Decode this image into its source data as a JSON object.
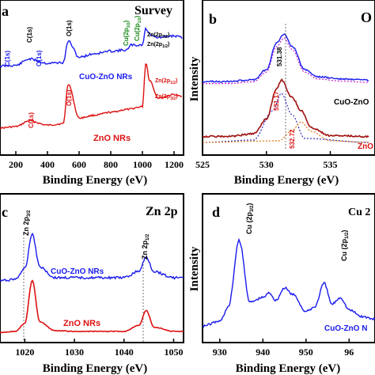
{
  "panels": [
    {
      "letter": "a",
      "title": "Survey",
      "xlabel": "Binding Energy (eV)",
      "xticks": [
        "200",
        "400",
        "600",
        "800",
        "1000",
        "1200"
      ],
      "labels": {
        "cuo_cu2p32": "Cu(2p",
        "cuo_cu2p32_sub": "3/2",
        "cuo_cu2p32_end": ")",
        "cuo_cu2p12": "Cu(2p",
        "cuo_cu2p12_sub": "1/2",
        "cuo_cu2p12_end": ")",
        "cuo_zn2p32": "Zn(2p",
        "cuo_zn2p32_sub": "3/2",
        "cuo_zn2p32_end": ")",
        "cuo_zn2p12": "Zn(2p",
        "cuo_zn2p12_sub": "1/2",
        "cuo_zn2p12_end": ")",
        "cuo_c1s": "C(1s)",
        "cuo_o1s": "O(1s)",
        "zno_c1s": "C(1s)",
        "zno_o1s": "O(1s)",
        "zno_zn2p12": "Zn(2p",
        "zno_zn2p12_sub": "1/2",
        "zno_zn2p12_end": ")",
        "zno_zn2p32": "Zn(2p",
        "zno_zn2p32_sub": "3/2",
        "zno_zn2p32_end": ")",
        "cuo_series": "CuO-ZnO NRs",
        "zno_series": "ZnO NRs"
      }
    },
    {
      "letter": "b",
      "title": "O",
      "xlabel": "Binding Energy (eV)",
      "ylabel": "Intensity",
      "xticks": [
        "525",
        "530",
        "535"
      ],
      "peak_top": "531.38",
      "peak_bottom_1": "531.17",
      "peak_bottom_2": "532.72",
      "cuo_series": "CuO-ZnO",
      "zno_series": "ZnO"
    },
    {
      "letter": "c",
      "title": "Zn 2p",
      "xlabel": "Binding Energy (eV)",
      "xticks": [
        "1020",
        "1030",
        "1040",
        "1050"
      ],
      "peak1": "Zn 2p",
      "peak1_sub": "3/2",
      "peak2": "Zn 2p",
      "peak2_sub": "1/2",
      "cuo_series": "CuO-ZnO NRs",
      "zno_series": "ZnO NRs"
    },
    {
      "letter": "d",
      "title": "Cu 2",
      "xlabel": "Binding Energy (eV)",
      "ylabel": "Intensity",
      "xticks": [
        "930",
        "940",
        "950",
        "96"
      ],
      "peak1": "Cu (2p",
      "peak1_sub": "3/2",
      "peak1_end": ")",
      "peak2": "Cu (2p",
      "peak2_sub": "1/2",
      "peak2_end": ")",
      "series": "CuO-ZnO N"
    }
  ],
  "colors": {
    "blue": "#1a1aee",
    "red": "#dd1111",
    "green": "#1a8a1a",
    "dkred": "#a01010",
    "magenta": "#cc22cc",
    "orange": "#e07a10",
    "purple": "#3030c0"
  },
  "chart_data": [
    {
      "type": "line",
      "panel": "a",
      "xlabel": "Binding Energy (eV)",
      "xlim": [
        100,
        1260
      ],
      "series": [
        {
          "name": "CuO-ZnO NRs",
          "x": [
            100,
            200,
            285,
            400,
            500,
            531,
            600,
            700,
            800,
            900,
            933,
            953,
            1000,
            1022,
            1045,
            1100,
            1200,
            1250
          ],
          "y": [
            70,
            72,
            90,
            78,
            80,
            140,
            95,
            105,
            112,
            115,
            130,
            128,
            130,
            175,
            160,
            150,
            155,
            150
          ]
        },
        {
          "name": "ZnO NRs",
          "x": [
            100,
            200,
            285,
            400,
            500,
            531,
            600,
            700,
            800,
            900,
            1000,
            1022,
            1045,
            1100,
            1200,
            1250
          ],
          "y": [
            18,
            20,
            28,
            22,
            24,
            80,
            32,
            36,
            40,
            44,
            48,
            110,
            85,
            60,
            65,
            62
          ]
        }
      ]
    },
    {
      "type": "line",
      "panel": "b",
      "xlabel": "Binding Energy (eV)",
      "ylabel": "Intensity",
      "xlim": [
        525,
        538
      ],
      "series": [
        {
          "name": "CuO-ZnO",
          "x": [
            525,
            527,
            529,
            530,
            530.8,
            531.38,
            532,
            533,
            534,
            536,
            538
          ],
          "y": [
            20,
            20,
            23,
            40,
            85,
            100,
            80,
            40,
            28,
            24,
            22
          ]
        },
        {
          "name": "ZnO",
          "x": [
            525,
            527,
            529,
            530,
            530.8,
            531.17,
            532,
            532.72,
            533.5,
            535,
            538
          ],
          "y": [
            5,
            5,
            8,
            25,
            60,
            70,
            50,
            35,
            15,
            6,
            5
          ]
        }
      ]
    },
    {
      "type": "line",
      "panel": "c",
      "xlabel": "Binding Energy (eV)",
      "xlim": [
        1015,
        1052
      ],
      "series": [
        {
          "name": "CuO-ZnO NRs",
          "x": [
            1015,
            1018,
            1020,
            1021.5,
            1023,
            1026,
            1030,
            1035,
            1040,
            1043,
            1044.5,
            1046,
            1050,
            1052
          ],
          "y": [
            30,
            32,
            45,
            90,
            48,
            34,
            34,
            34,
            34,
            42,
            60,
            42,
            34,
            34
          ]
        },
        {
          "name": "ZnO NRs",
          "x": [
            1015,
            1018,
            1020,
            1021.5,
            1023,
            1026,
            1030,
            1035,
            1040,
            1043,
            1044.5,
            1046,
            1050,
            1052
          ],
          "y": [
            0,
            1,
            10,
            60,
            12,
            2,
            1,
            1,
            1,
            8,
            25,
            6,
            1,
            1
          ]
        }
      ]
    },
    {
      "type": "line",
      "panel": "d",
      "xlabel": "Binding Energy (eV)",
      "ylabel": "Intensity",
      "xlim": [
        926,
        966
      ],
      "series": [
        {
          "name": "CuO-ZnO N",
          "x": [
            926,
            930,
            932,
            934.5,
            937,
            940,
            941.5,
            943,
            945,
            947,
            950,
            952,
            954.2,
            956,
            958,
            960,
            963,
            966
          ],
          "y": [
            5,
            10,
            25,
            95,
            30,
            35,
            40,
            32,
            45,
            38,
            20,
            25,
            50,
            28,
            35,
            22,
            15,
            12
          ]
        }
      ]
    }
  ]
}
